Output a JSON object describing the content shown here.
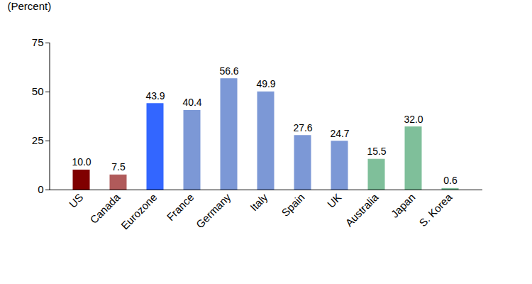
{
  "chart_data": {
    "type": "bar",
    "categories": [
      "US",
      "Canada",
      "Eurozone",
      "France",
      "Germany",
      "Italy",
      "Spain",
      "UK",
      "Australia",
      "Japan",
      "S. Korea"
    ],
    "values": [
      10.0,
      7.5,
      43.9,
      40.4,
      56.6,
      49.9,
      27.6,
      24.7,
      15.5,
      32.0,
      0.6
    ],
    "value_labels": [
      "10.0",
      "7.5",
      "43.9",
      "40.4",
      "56.6",
      "49.9",
      "27.6",
      "24.7",
      "15.5",
      "32.0",
      "0.6"
    ],
    "colors": [
      "#800000",
      "#b05a5a",
      "#3366ff",
      "#7c98d6",
      "#7c98d6",
      "#7c98d6",
      "#7c98d6",
      "#7c98d6",
      "#7fbf9a",
      "#7fbf9a",
      "#7fbf9a"
    ],
    "y_label": "(Percent)",
    "ylim": [
      0,
      75
    ],
    "yticks": [
      0,
      25,
      50,
      75
    ],
    "data_labels": true,
    "grid": false
  }
}
